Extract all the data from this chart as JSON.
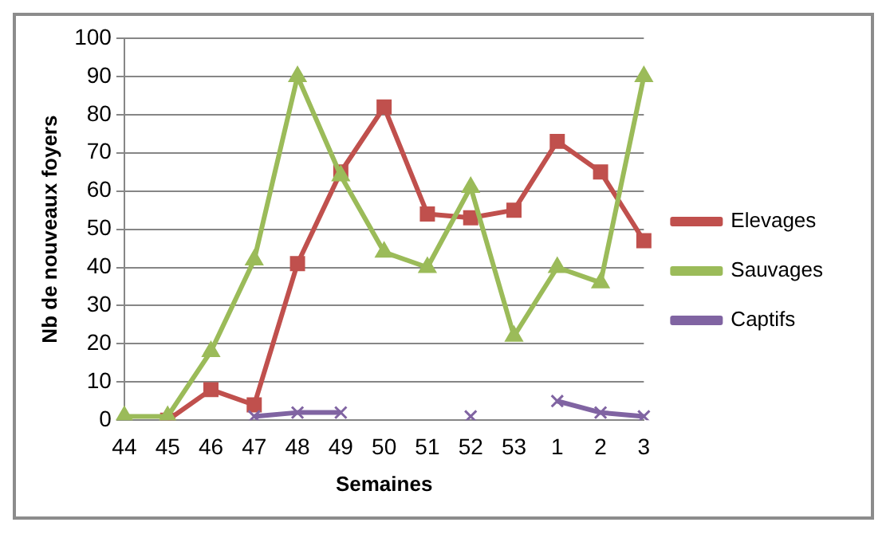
{
  "chart_data": {
    "type": "line",
    "xlabel": "Semaines",
    "ylabel": "Nb de nouveaux foyers",
    "categories": [
      "44",
      "45",
      "46",
      "47",
      "48",
      "49",
      "50",
      "51",
      "52",
      "53",
      "1",
      "2",
      "3"
    ],
    "series": [
      {
        "name": "Elevages",
        "color": "#c0504d",
        "marker": "square",
        "values": [
          null,
          0,
          8,
          4,
          41,
          65,
          82,
          54,
          53,
          55,
          73,
          65,
          47
        ]
      },
      {
        "name": "Sauvages",
        "color": "#9bbb59",
        "marker": "triangle",
        "values": [
          1,
          1,
          18,
          42,
          90,
          64,
          44,
          40,
          61,
          22,
          40,
          36,
          90
        ]
      },
      {
        "name": "Captifs",
        "color": "#8064a2",
        "marker": "cross",
        "values": [
          null,
          null,
          null,
          1,
          2,
          2,
          null,
          null,
          1,
          null,
          5,
          2,
          1
        ]
      }
    ],
    "ylim": [
      0,
      100
    ],
    "yticks": [
      0,
      10,
      20,
      30,
      40,
      50,
      60,
      70,
      80,
      90,
      100
    ],
    "grid": "y",
    "legend": "right"
  }
}
